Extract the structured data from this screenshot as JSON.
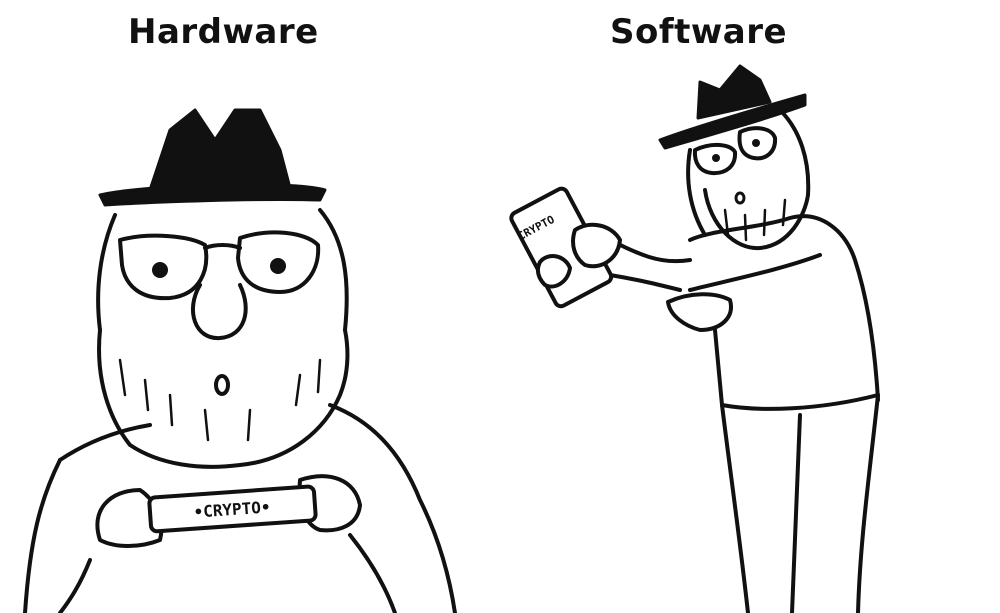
{
  "panels": {
    "left": {
      "title": "Hardware",
      "device_label": "•CRYPTO•"
    },
    "right": {
      "title": "Software",
      "device_label": "CRYPTO"
    }
  },
  "icons": {
    "left_figure": "bearded-man-hat-holding-hardware-wallet-icon",
    "right_figure": "bearded-man-hat-holding-phone-icon"
  }
}
